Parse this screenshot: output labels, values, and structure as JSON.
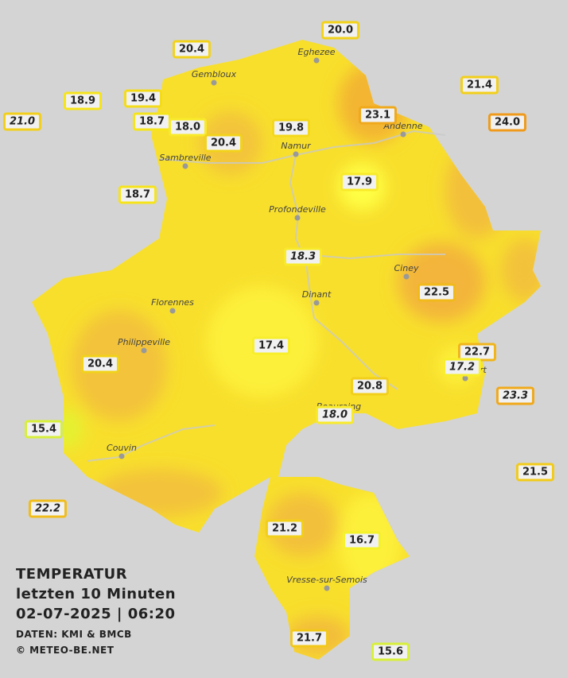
{
  "title": [
    "TEMPERATUR",
    "letzten 10 Minuten",
    "02-07-2025  |  06:20",
    "DATEN: KMI & BMCB",
    "© METEO-BE.NET"
  ],
  "cities": [
    "Eghezee",
    "Gembloux",
    "Andenne",
    "Namur",
    "Sambreville",
    "Profondeville",
    "Ciney",
    "Dinant",
    "Florennes",
    "Philippeville",
    "Rochefort",
    "Beauraing",
    "Couvin",
    "Vresse-sur-Semois"
  ],
  "stations": [
    {
      "value": "20.0",
      "color": "#f2d21a"
    },
    {
      "value": "20.4",
      "color": "#f2d21a"
    },
    {
      "value": "21.4",
      "color": "#f2cf1a"
    },
    {
      "value": "18.9",
      "color": "#f6e41a"
    },
    {
      "value": "19.4",
      "color": "#f4dc1a"
    },
    {
      "value": "21.0",
      "color": "#f2cf1a",
      "italic": true
    },
    {
      "value": "18.7",
      "color": "#f6e41a"
    },
    {
      "value": "18.0",
      "color": "#f8ea2a"
    },
    {
      "value": "20.4",
      "color": "#f2d21a"
    },
    {
      "value": "19.8",
      "color": "#f4d81a"
    },
    {
      "value": "23.1",
      "color": "#f0a91a"
    },
    {
      "value": "24.0",
      "color": "#ef9a1a"
    },
    {
      "value": "17.9",
      "color": "#f8ea2a"
    },
    {
      "value": "18.7",
      "color": "#f6e41a"
    },
    {
      "value": "18.3",
      "color": "#f8ea2a",
      "italic": true
    },
    {
      "value": "22.5",
      "color": "#f1b91a"
    },
    {
      "value": "20.4",
      "color": "#f2d21a"
    },
    {
      "value": "17.4",
      "color": "#f8ee2a"
    },
    {
      "value": "22.7",
      "color": "#f1b51a"
    },
    {
      "value": "17.2",
      "color": "#f8ee2a",
      "italic": true
    },
    {
      "value": "20.8",
      "color": "#f2cf1a"
    },
    {
      "value": "23.3",
      "color": "#f0a91a",
      "italic": true
    },
    {
      "value": "18.0",
      "color": "#f8ea2a",
      "italic": true
    },
    {
      "value": "15.4",
      "color": "#d8ef3a"
    },
    {
      "value": "21.5",
      "color": "#f2cb1a"
    },
    {
      "value": "22.2",
      "color": "#f1bd1a",
      "italic": true
    },
    {
      "value": "21.2",
      "color": "#f2cf1a"
    },
    {
      "value": "16.7",
      "color": "#f4f22a"
    },
    {
      "value": "21.7",
      "color": "#f2c81a"
    },
    {
      "value": "15.6",
      "color": "#d8ef3a"
    }
  ]
}
